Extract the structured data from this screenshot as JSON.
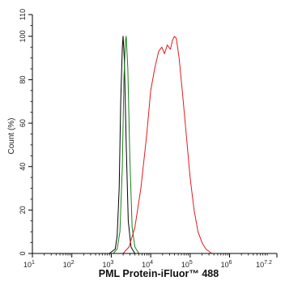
{
  "chart_data": {
    "type": "line",
    "title": "",
    "xlabel": "PML Protein-iFluor™ 488",
    "ylabel": "Count  (%)",
    "x_scale": "log",
    "xlim_log10": [
      1,
      7.2
    ],
    "ylim": [
      0,
      110
    ],
    "x_ticks": [
      {
        "base": "10",
        "exp": "1"
      },
      {
        "base": "10",
        "exp": "2"
      },
      {
        "base": "10",
        "exp": "3"
      },
      {
        "base": "10",
        "exp": "4"
      },
      {
        "base": "10",
        "exp": "5"
      },
      {
        "base": "10",
        "exp": "6"
      },
      {
        "base": "10",
        "exp": "7.2"
      }
    ],
    "y_ticks": [
      "0",
      "20",
      "40",
      "60",
      "80",
      "100",
      "110"
    ],
    "grid": false,
    "legend": "none",
    "series": [
      {
        "color": "#000000",
        "points_log10x": [
          [
            2.95,
            0
          ],
          [
            3.1,
            2
          ],
          [
            3.15,
            8
          ],
          [
            3.2,
            30
          ],
          [
            3.24,
            70
          ],
          [
            3.28,
            95
          ],
          [
            3.3,
            100
          ],
          [
            3.33,
            90
          ],
          [
            3.38,
            50
          ],
          [
            3.43,
            15
          ],
          [
            3.5,
            3
          ],
          [
            3.6,
            0
          ]
        ]
      },
      {
        "color": "#1a7f1a",
        "points_log10x": [
          [
            3.05,
            0
          ],
          [
            3.15,
            2
          ],
          [
            3.22,
            10
          ],
          [
            3.28,
            40
          ],
          [
            3.32,
            80
          ],
          [
            3.36,
            98
          ],
          [
            3.38,
            100
          ],
          [
            3.42,
            85
          ],
          [
            3.47,
            45
          ],
          [
            3.53,
            12
          ],
          [
            3.6,
            3
          ],
          [
            3.7,
            0
          ]
        ]
      },
      {
        "color": "#e31a1c",
        "points_log10x": [
          [
            3.3,
            0
          ],
          [
            3.45,
            3
          ],
          [
            3.6,
            12
          ],
          [
            3.75,
            30
          ],
          [
            3.9,
            55
          ],
          [
            4.0,
            75
          ],
          [
            4.1,
            85
          ],
          [
            4.2,
            93
          ],
          [
            4.28,
            95
          ],
          [
            4.35,
            92
          ],
          [
            4.42,
            96
          ],
          [
            4.5,
            94
          ],
          [
            4.55,
            98
          ],
          [
            4.6,
            100
          ],
          [
            4.65,
            99
          ],
          [
            4.72,
            90
          ],
          [
            4.8,
            75
          ],
          [
            4.9,
            55
          ],
          [
            5.0,
            35
          ],
          [
            5.1,
            20
          ],
          [
            5.2,
            10
          ],
          [
            5.3,
            5
          ],
          [
            5.4,
            2
          ],
          [
            5.55,
            0
          ]
        ]
      }
    ]
  }
}
